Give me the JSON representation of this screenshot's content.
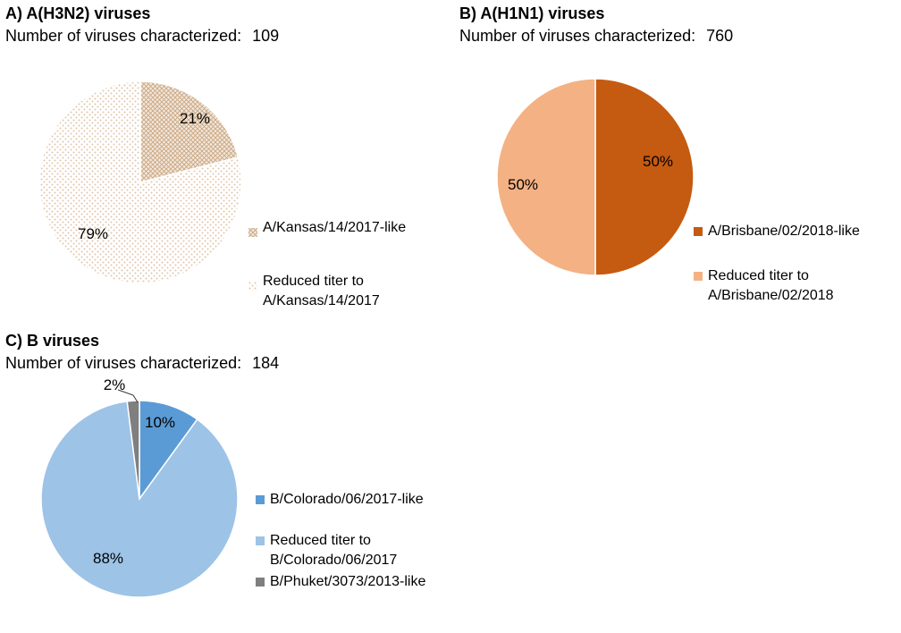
{
  "chart_data": [
    {
      "type": "pie",
      "title": "A) A(H3N2) viruses",
      "count_label": "Number of viruses characterized:",
      "count_value": "109",
      "series": [
        {
          "name": "A/Kansas/14/2017-like",
          "label": "21%",
          "value": 21,
          "color": "#d9c4a6",
          "pattern": "crosshatch"
        },
        {
          "name": "Reduced titer to A/Kansas/14/2017",
          "label": "79%",
          "value": 79,
          "color": "#efdccb",
          "pattern": "dots"
        }
      ]
    },
    {
      "type": "pie",
      "title": "B) A(H1N1) viruses",
      "count_label": "Number of viruses characterized:",
      "count_value": "760",
      "series": [
        {
          "name": "A/Brisbane/02/2018-like",
          "label": "50%",
          "value": 50,
          "color": "#c55a11"
        },
        {
          "name": "Reduced titer to A/Brisbane/02/2018",
          "label": "50%",
          "value": 50,
          "color": "#f4b183"
        }
      ]
    },
    {
      "type": "pie",
      "title": "C) B viruses",
      "count_label": "Number of viruses characterized:",
      "count_value": "184",
      "series": [
        {
          "name": "B/Colorado/06/2017-like",
          "label": "10%",
          "value": 10,
          "color": "#5b9bd5"
        },
        {
          "name": "Reduced titer to B/Colorado/06/2017",
          "label": "88%",
          "value": 88,
          "color": "#9dc3e6"
        },
        {
          "name": "B/Phuket/3073/2013-like",
          "label": "2%",
          "value": 2,
          "color": "#7f7f7f"
        }
      ]
    }
  ]
}
